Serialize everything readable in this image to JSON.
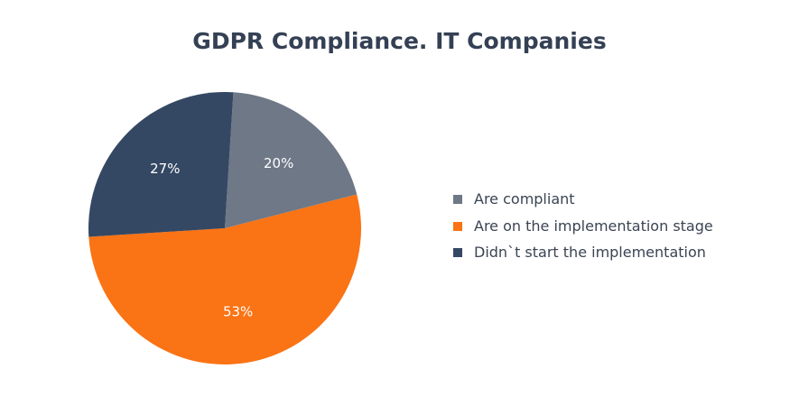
{
  "chart_data": {
    "type": "pie",
    "title": "GDPR Compliance. IT Companies",
    "legend_position": "right",
    "slices": [
      {
        "label": "Are compliant",
        "value": 20,
        "display": "20%",
        "color": "#6e7887"
      },
      {
        "label": "Are on the implementation stage",
        "value": 53,
        "display": "53%",
        "color": "#fa7314"
      },
      {
        "label": "Didn`t  start the implementation",
        "value": 27,
        "display": "27%",
        "color": "#344863"
      }
    ]
  }
}
